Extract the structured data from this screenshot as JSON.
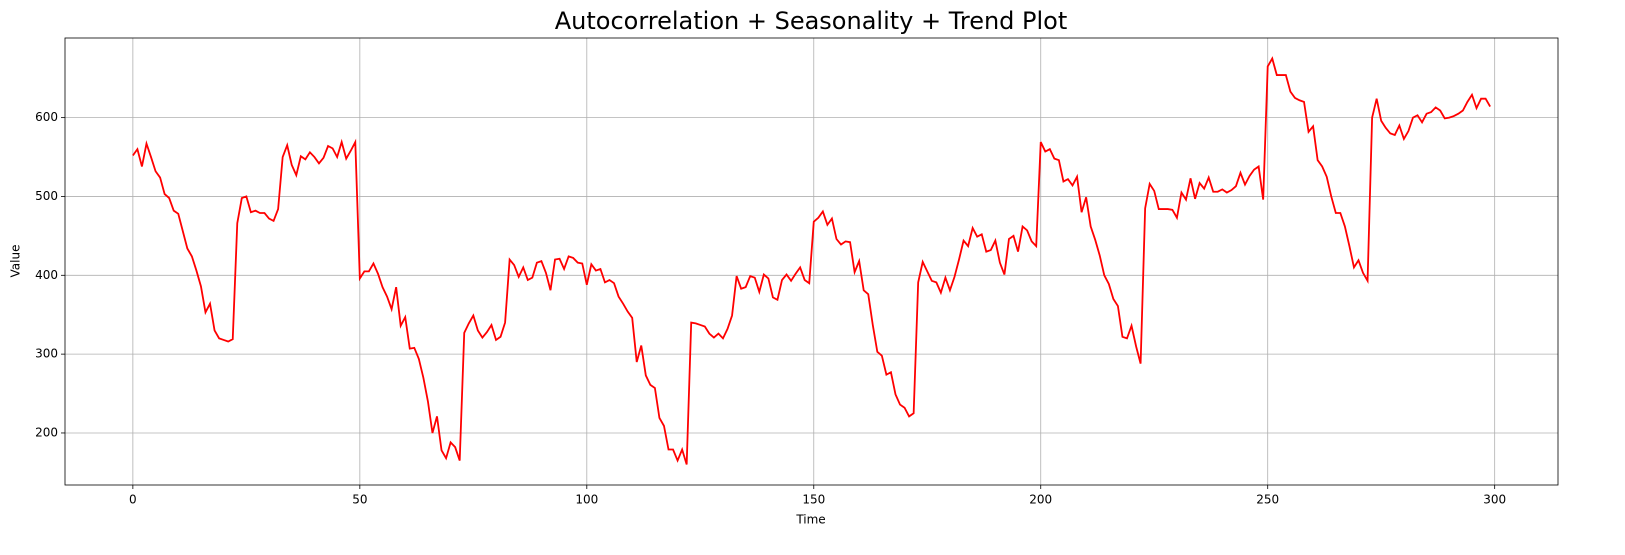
{
  "chart_data": {
    "type": "line",
    "title": "Autocorrelation + Seasonality + Trend Plot",
    "x_label": "Time",
    "y_label": "Value",
    "color": "red",
    "grid": true,
    "x": [
      0,
      1,
      2,
      3,
      4,
      5,
      6,
      7,
      8,
      9,
      10,
      11,
      12,
      13,
      14,
      15,
      16,
      17,
      18,
      19,
      20,
      21,
      22,
      23,
      24,
      25,
      26,
      27,
      28,
      29,
      30,
      31,
      32,
      33,
      34,
      35,
      36,
      37,
      38,
      39,
      40,
      41,
      42,
      43,
      44,
      45,
      46,
      47,
      48,
      49,
      50,
      51,
      52,
      53,
      54,
      55,
      56,
      57,
      58,
      59,
      60,
      61,
      62,
      63,
      64,
      65,
      66,
      67,
      68,
      69,
      70,
      71,
      72,
      73,
      74,
      75,
      76,
      77,
      78,
      79,
      80,
      81,
      82,
      83,
      84,
      85,
      86,
      87,
      88,
      89,
      90,
      91,
      92,
      93,
      94,
      95,
      96,
      97,
      98,
      99,
      100,
      101,
      102,
      103,
      104,
      105,
      106,
      107,
      108,
      109,
      110,
      111,
      112,
      113,
      114,
      115,
      116,
      117,
      118,
      119,
      120,
      121,
      122,
      123,
      124,
      125,
      126,
      127,
      128,
      129,
      130,
      131,
      132,
      133,
      134,
      135,
      136,
      137,
      138,
      139,
      140,
      141,
      142,
      143,
      144,
      145,
      146,
      147,
      148,
      149,
      150,
      151,
      152,
      153,
      154,
      155,
      156,
      157,
      158,
      159,
      160,
      161,
      162,
      163,
      164,
      165,
      166,
      167,
      168,
      169,
      170,
      171,
      172,
      173,
      174,
      175,
      176,
      177,
      178,
      179,
      180,
      181,
      182,
      183,
      184,
      185,
      186,
      187,
      188,
      189,
      190,
      191,
      192,
      193,
      194,
      195,
      196,
      197,
      198,
      199,
      200,
      201,
      202,
      203,
      204,
      205,
      206,
      207,
      208,
      209,
      210,
      211,
      212,
      213,
      214,
      215,
      216,
      217,
      218,
      219,
      220,
      221,
      222,
      223,
      224,
      225,
      226,
      227,
      228,
      229,
      230,
      231,
      232,
      233,
      234,
      235,
      236,
      237,
      238,
      239,
      240,
      241,
      242,
      243,
      244,
      245,
      246,
      247,
      248,
      249,
      250,
      251,
      252,
      253,
      254,
      255,
      256,
      257,
      258,
      259,
      260,
      261,
      262,
      263,
      264,
      265,
      266,
      267,
      268,
      269,
      270,
      271,
      272,
      273,
      274,
      275,
      276,
      277,
      278,
      279,
      280,
      281,
      282,
      283,
      284,
      285,
      286,
      287,
      288,
      289,
      290,
      291,
      292,
      293,
      294,
      295,
      296,
      297,
      298,
      299
    ],
    "values": [
      552,
      560,
      538,
      567,
      550,
      532,
      524,
      503,
      498,
      482,
      478,
      456,
      434,
      424,
      406,
      386,
      353,
      364,
      330,
      320,
      318,
      316,
      319,
      466,
      498,
      500,
      480,
      482,
      479,
      479,
      472,
      469,
      484,
      550,
      565,
      540,
      527,
      551,
      547,
      556,
      550,
      542,
      549,
      564,
      561,
      550,
      569,
      548,
      558,
      569,
      396,
      405,
      405,
      415,
      402,
      385,
      373,
      357,
      385,
      336,
      347,
      307,
      308,
      294,
      270,
      240,
      200,
      221,
      178,
      168,
      188,
      182,
      165,
      327,
      339,
      349,
      330,
      321,
      328,
      337,
      318,
      322,
      340,
      420,
      413,
      398,
      410,
      394,
      397,
      416,
      418,
      403,
      381,
      420,
      421,
      408,
      424,
      422,
      416,
      415,
      388,
      414,
      406,
      408,
      391,
      394,
      390,
      373,
      364,
      354,
      346,
      290,
      311,
      273,
      261,
      257,
      219,
      209,
      179,
      179,
      165,
      179,
      160,
      340,
      339,
      337,
      335,
      326,
      321,
      326,
      320,
      332,
      349,
      399,
      383,
      385,
      399,
      397,
      379,
      401,
      396,
      372,
      369,
      394,
      401,
      393,
      402,
      410,
      394,
      390,
      468,
      473,
      481,
      464,
      472,
      446,
      439,
      443,
      442,
      404,
      418,
      381,
      376,
      337,
      303,
      298,
      274,
      277,
      249,
      236,
      232,
      221,
      225,
      391,
      417,
      405,
      393,
      391,
      378,
      397,
      381,
      398,
      420,
      444,
      437,
      460,
      449,
      452,
      430,
      432,
      444,
      416,
      401,
      446,
      450,
      430,
      462,
      457,
      443,
      437,
      569,
      557,
      560,
      548,
      546,
      519,
      522,
      514,
      525,
      480,
      499,
      462,
      445,
      425,
      400,
      389,
      370,
      361,
      322,
      320,
      336,
      310,
      288,
      485,
      516,
      507,
      484,
      484,
      484,
      483,
      473,
      505,
      496,
      523,
      497,
      517,
      510,
      524,
      506,
      506,
      509,
      505,
      508,
      513,
      530,
      515,
      526,
      534,
      538,
      496,
      665,
      675,
      654,
      654,
      654,
      633,
      625,
      622,
      620,
      582,
      589,
      546,
      538,
      525,
      500,
      479,
      479,
      462,
      437,
      410,
      419,
      403,
      393,
      600,
      624,
      596,
      587,
      580,
      578,
      590,
      573,
      583,
      600,
      603,
      594,
      605,
      607,
      613,
      609,
      599,
      600,
      602,
      605,
      609,
      620,
      629,
      612,
      624,
      624,
      614
    ],
    "xlim": [
      -14.95,
      313.95
    ],
    "xticks": [
      0,
      50,
      100,
      150,
      200,
      250,
      300
    ],
    "ylim": [
      134,
      701
    ],
    "yticks": [
      200,
      300,
      400,
      500,
      600
    ]
  }
}
